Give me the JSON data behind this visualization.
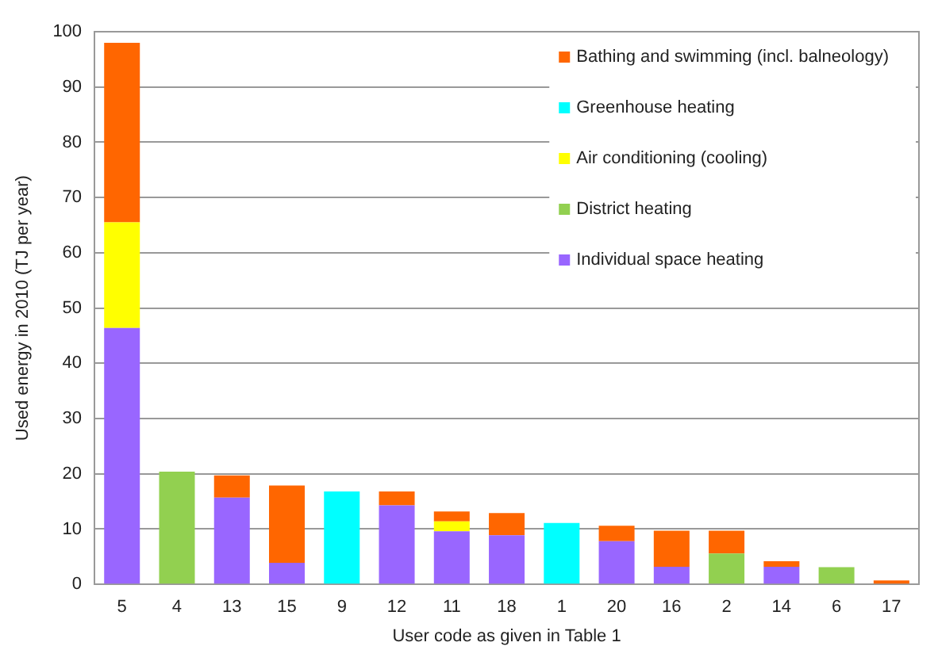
{
  "chart_data": {
    "type": "bar",
    "stacked": true,
    "xlabel": "User code as given in Table 1",
    "ylabel": "Used energy in 2010 (TJ per year)",
    "categories": [
      "5",
      "4",
      "13",
      "15",
      "9",
      "12",
      "11",
      "18",
      "1",
      "20",
      "16",
      "2",
      "14",
      "6",
      "17"
    ],
    "series": [
      {
        "name": "Individual space heating",
        "color": "#9966ff",
        "values": [
          46.4,
          null,
          15.7,
          3.9,
          null,
          14.3,
          9.6,
          8.9,
          null,
          7.8,
          3.2,
          null,
          3.2,
          null,
          null
        ]
      },
      {
        "name": "District heating",
        "color": "#92d050",
        "values": [
          null,
          20.4,
          null,
          null,
          null,
          null,
          null,
          null,
          null,
          null,
          null,
          5.6,
          null,
          3.1,
          null
        ]
      },
      {
        "name": "Air conditioning (cooling)",
        "color": "#ffff00",
        "values": [
          19.1,
          null,
          null,
          null,
          null,
          null,
          1.8,
          null,
          null,
          null,
          null,
          null,
          null,
          null,
          null
        ]
      },
      {
        "name": "Greenhouse heating",
        "color": "#00ffff",
        "values": [
          null,
          null,
          null,
          null,
          16.8,
          null,
          null,
          null,
          11.1,
          null,
          null,
          null,
          null,
          null,
          null
        ]
      },
      {
        "name": "Bathing and swimming (incl. balneology)",
        "color": "#ff6600",
        "values": [
          32.5,
          null,
          4.0,
          14.0,
          null,
          2.5,
          1.8,
          4.0,
          null,
          2.8,
          6.5,
          4.1,
          1.0,
          null,
          0.7
        ]
      }
    ],
    "ylim": [
      0,
      100
    ],
    "yticks": [
      0,
      10,
      20,
      30,
      40,
      50,
      60,
      70,
      80,
      90,
      100
    ],
    "grid": "y",
    "legend": "top right"
  }
}
